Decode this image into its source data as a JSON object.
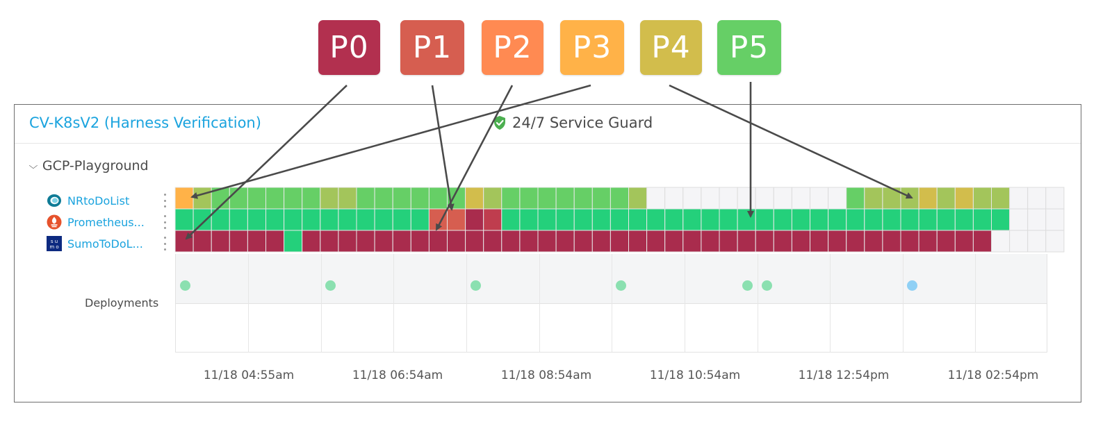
{
  "legend": [
    {
      "label": "P0",
      "color": "#b2304f"
    },
    {
      "label": "P1",
      "color": "#d65e50"
    },
    {
      "label": "P2",
      "color": "#ff8a52"
    },
    {
      "label": "P3",
      "color": "#ffb248"
    },
    {
      "label": "P4",
      "color": "#d2bd4c"
    },
    {
      "label": "P5",
      "color": "#66cf66"
    }
  ],
  "header": {
    "service_name": "CV-K8sV2 (Harness Verification)",
    "guard_label": "24/7 Service Guard",
    "guard_icon": "shield-check-icon",
    "guard_icon_color": "#4caf50"
  },
  "environment": {
    "name": "GCP-Playground",
    "expanded": true
  },
  "heatmap": {
    "rows": [
      {
        "label": "NRtoDoList",
        "icon": "newrelic-icon"
      },
      {
        "label": "Prometheus...",
        "icon": "prometheus-icon"
      },
      {
        "label": "SumoToDoL...",
        "icon": "sumologic-icon"
      }
    ],
    "colors": {
      "P0": "#a92c4d",
      "P1": "#d65e50",
      "P2": "#ff8a52",
      "P3": "#ffb248",
      "P4": "#d2bd4c",
      "P4b": "#a3c55b",
      "P5": "#66cf66",
      "healthy": "#24d07b",
      "P0b": "#bf3d4e",
      "empty": "#f5f5f7"
    },
    "cells": [
      [
        "P3",
        "P4b",
        "P5",
        "P5",
        "P5",
        "P5",
        "P5",
        "P5",
        "P4b",
        "P4b",
        "P5",
        "P5",
        "P5",
        "P5",
        "P5",
        "P5",
        "P4",
        "P4b",
        "P5",
        "P5",
        "P5",
        "P5",
        "P5",
        "P5",
        "P5",
        "P4b",
        "empty",
        "empty",
        "empty",
        "empty",
        "empty",
        "empty",
        "empty",
        "empty",
        "empty",
        "empty",
        "empty",
        "P5",
        "P4b",
        "P4b",
        "P4b",
        "P4",
        "P4b",
        "P4",
        "P4b",
        "P4b",
        "empty",
        "empty",
        "empty"
      ],
      [
        "healthy",
        "healthy",
        "healthy",
        "healthy",
        "healthy",
        "healthy",
        "healthy",
        "healthy",
        "healthy",
        "healthy",
        "healthy",
        "healthy",
        "healthy",
        "healthy",
        "P1",
        "P1",
        "P0",
        "P0b",
        "healthy",
        "healthy",
        "healthy",
        "healthy",
        "healthy",
        "healthy",
        "healthy",
        "healthy",
        "healthy",
        "healthy",
        "healthy",
        "healthy",
        "healthy",
        "healthy",
        "healthy",
        "healthy",
        "healthy",
        "healthy",
        "healthy",
        "healthy",
        "healthy",
        "healthy",
        "healthy",
        "healthy",
        "healthy",
        "healthy",
        "healthy",
        "healthy",
        "empty",
        "empty",
        "empty"
      ],
      [
        "P0",
        "P0",
        "P0",
        "P0",
        "P0",
        "P0",
        "healthy",
        "P0",
        "P0",
        "P0",
        "P0",
        "P0",
        "P0",
        "P0",
        "P0",
        "P0",
        "P0",
        "P0",
        "P0",
        "P0",
        "P0",
        "P0",
        "P0",
        "P0",
        "P0",
        "P0",
        "P0",
        "P0",
        "P0",
        "P0",
        "P0",
        "P0",
        "P0",
        "P0",
        "P0",
        "P0",
        "P0",
        "P0",
        "P0",
        "P0",
        "P0",
        "P0",
        "P0",
        "P0",
        "P0",
        "empty",
        "empty",
        "empty",
        "empty"
      ]
    ]
  },
  "deployments": {
    "label": "Deployments",
    "dots": [
      {
        "color": "#8be0b0"
      },
      {
        "color": "#8be0b0"
      },
      {
        "color": "#8be0b0"
      },
      {
        "color": "#8be0b0"
      },
      {
        "color": "#8be0b0"
      },
      {
        "color": "#8be0b0"
      },
      {
        "color": "#8fd0f5"
      }
    ]
  },
  "time_axis": {
    "ticks": [
      "11/18 04:55am",
      "11/18 06:54am",
      "11/18 08:54am",
      "11/18 10:54am",
      "11/18 12:54pm",
      "11/18 02:54pm"
    ]
  }
}
